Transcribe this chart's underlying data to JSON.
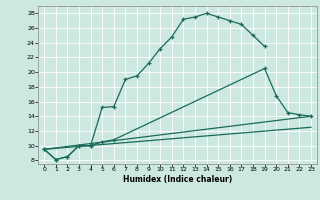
{
  "title": "",
  "xlabel": "Humidex (Indice chaleur)",
  "xlim": [
    -0.5,
    23.5
  ],
  "ylim": [
    7.5,
    29
  ],
  "xticks": [
    0,
    1,
    2,
    3,
    4,
    5,
    6,
    7,
    8,
    9,
    10,
    11,
    12,
    13,
    14,
    15,
    16,
    17,
    18,
    19,
    20,
    21,
    22,
    23
  ],
  "yticks": [
    8,
    10,
    12,
    14,
    16,
    18,
    20,
    22,
    24,
    26,
    28
  ],
  "background_color": "#cde8e0",
  "line_color": "#1a6b5a",
  "grid_color": "#b0d4cc",
  "curve1_x": [
    0,
    1,
    2,
    3,
    4,
    5,
    6,
    7,
    8,
    9,
    10,
    11,
    12,
    13,
    14,
    15,
    16,
    17,
    18,
    19
  ],
  "curve1_y": [
    9.5,
    8.1,
    8.5,
    10.0,
    10.0,
    15.2,
    15.3,
    19.0,
    19.5,
    21.2,
    23.2,
    24.8,
    27.2,
    27.5,
    28.0,
    27.5,
    27.0,
    26.5,
    25.0,
    23.5
  ],
  "curve2_x": [
    0,
    1,
    2,
    3,
    4,
    5,
    6,
    19,
    20,
    21,
    22,
    23
  ],
  "curve2_y": [
    9.5,
    8.1,
    8.5,
    10.0,
    10.0,
    10.5,
    10.8,
    20.5,
    16.8,
    14.5,
    14.2,
    14.0
  ],
  "curve3_x": [
    0,
    23
  ],
  "curve3_y": [
    9.5,
    14.0
  ],
  "curve4_x": [
    0,
    23
  ],
  "curve4_y": [
    9.5,
    12.5
  ]
}
